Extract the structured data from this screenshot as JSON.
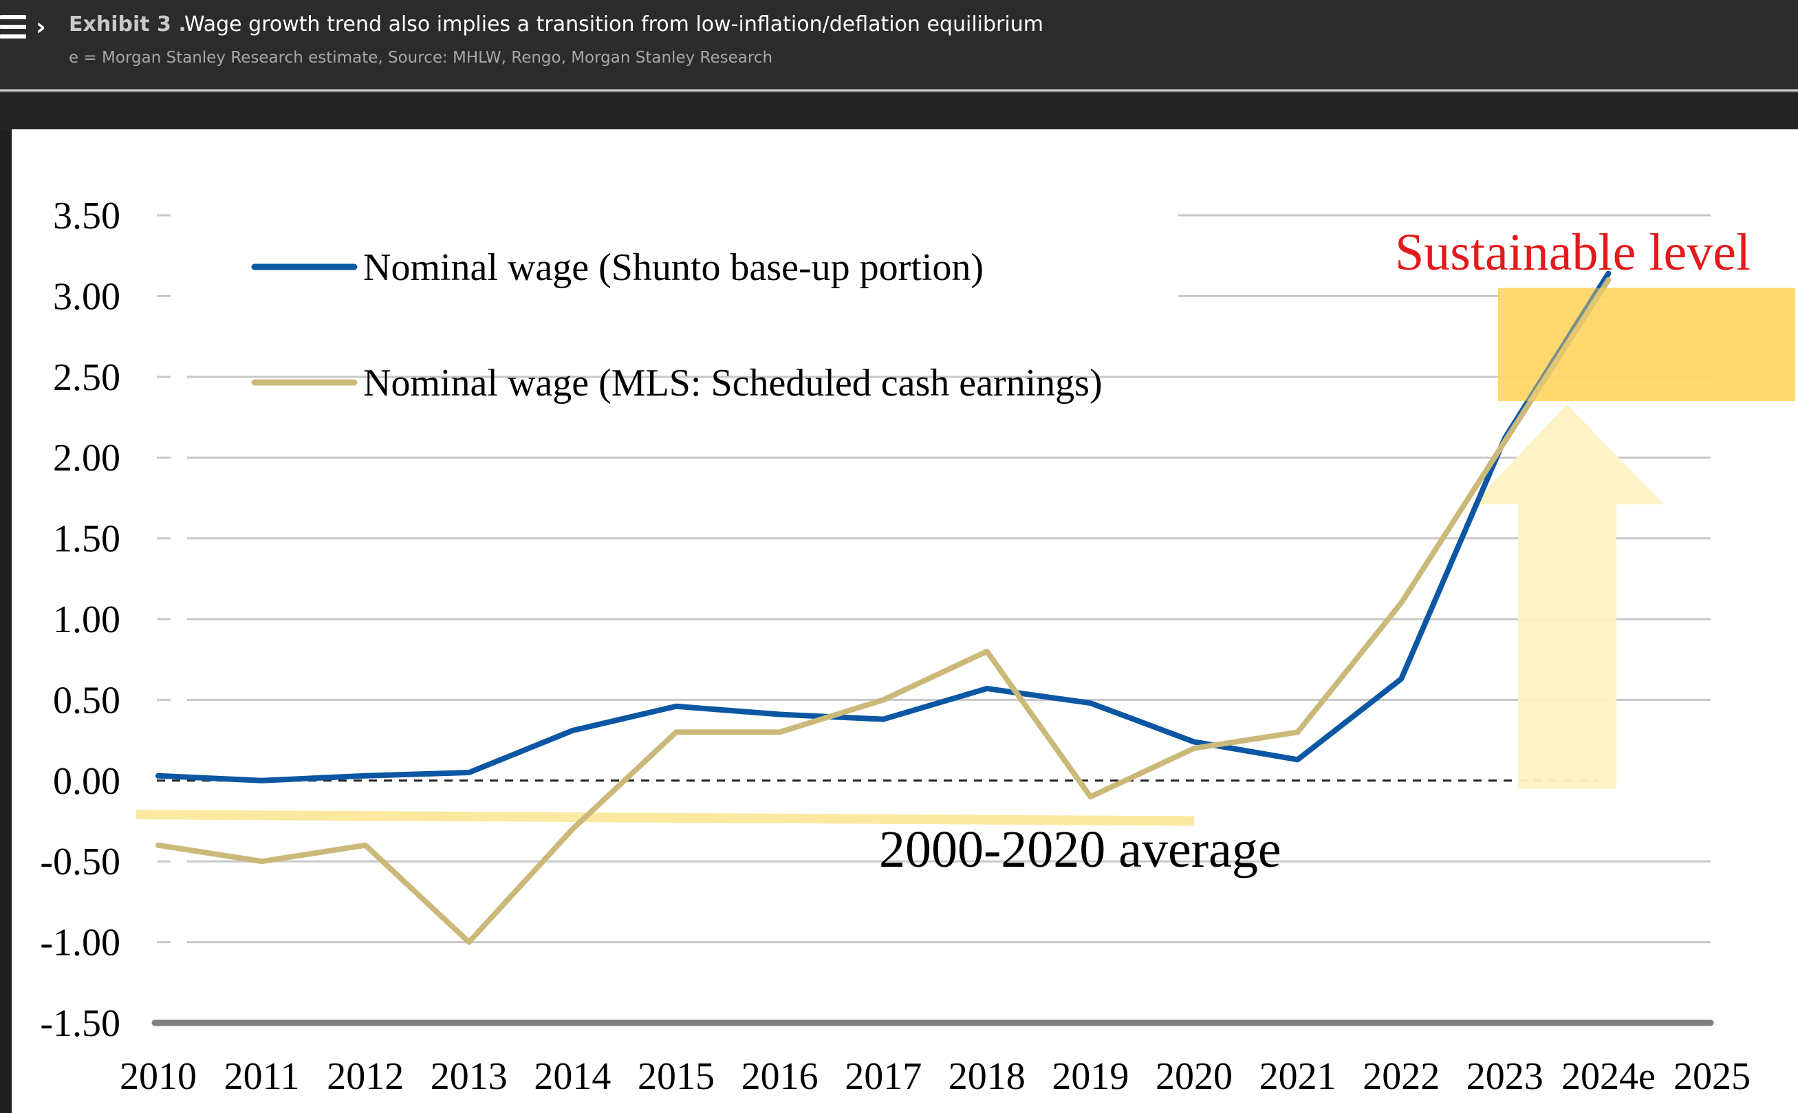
{
  "header": {
    "exhibit": "Exhibit 3 .",
    "title": "Wage growth trend also implies a transition from low-inflation/deflation equilibrium",
    "subtitle": "e = Morgan Stanley Research estimate, Source: MHLW, Rengo, Morgan Stanley Research",
    "icons": [
      "menu-icon",
      "chevron-right-icon"
    ]
  },
  "chart_data": {
    "type": "line",
    "title": "Wage growth trend also implies a transition from low-inflation/deflation equilibrium",
    "xlabel": "",
    "ylabel": "",
    "categories": [
      "2010",
      "2011",
      "2012",
      "2013",
      "2014",
      "2015",
      "2016",
      "2017",
      "2018",
      "2019",
      "2020",
      "2021",
      "2022",
      "2023",
      "2024e",
      "2025"
    ],
    "y_ticks": [
      "3.50",
      "3.00",
      "2.50",
      "2.00",
      "1.50",
      "1.00",
      "0.50",
      "0.00",
      "-0.50",
      "-1.00",
      "-1.50"
    ],
    "ylim": [
      -1.5,
      3.5
    ],
    "grid": true,
    "legend_position": "top-left",
    "series": [
      {
        "name": "Nominal wage (Shunto base-up portion)",
        "color": "#0b57a4",
        "x": [
          "2010",
          "2011",
          "2012",
          "2013",
          "2014",
          "2015",
          "2016",
          "2017",
          "2018",
          "2019",
          "2020",
          "2021",
          "2022",
          "2023",
          "2024e"
        ],
        "values": [
          0.03,
          0.0,
          0.03,
          0.05,
          0.31,
          0.46,
          0.41,
          0.38,
          0.57,
          0.48,
          0.24,
          0.13,
          0.63,
          2.12,
          3.14
        ]
      },
      {
        "name": "Nominal wage (MLS: Scheduled cash earnings)",
        "color": "#cbb97a",
        "x": [
          "2010",
          "2011",
          "2012",
          "2013",
          "2014",
          "2015",
          "2016",
          "2017",
          "2018",
          "2019",
          "2020",
          "2021",
          "2022",
          "2023",
          "2024e"
        ],
        "values": [
          -0.4,
          -0.5,
          -0.4,
          -1.0,
          -0.3,
          0.3,
          0.3,
          0.5,
          0.8,
          -0.1,
          0.2,
          0.3,
          1.1,
          2.1,
          3.1
        ]
      }
    ],
    "annotations": [
      {
        "text": "Sustainable level",
        "color": "#e21a1a",
        "y_range": [
          2.35,
          3.05
        ]
      },
      {
        "text": "2000-2020 average",
        "color": "#000000",
        "value_start": -0.21,
        "value_end": -0.25,
        "x_from": "2010",
        "x_to": "2020"
      }
    ],
    "zero_line": "dashed"
  }
}
